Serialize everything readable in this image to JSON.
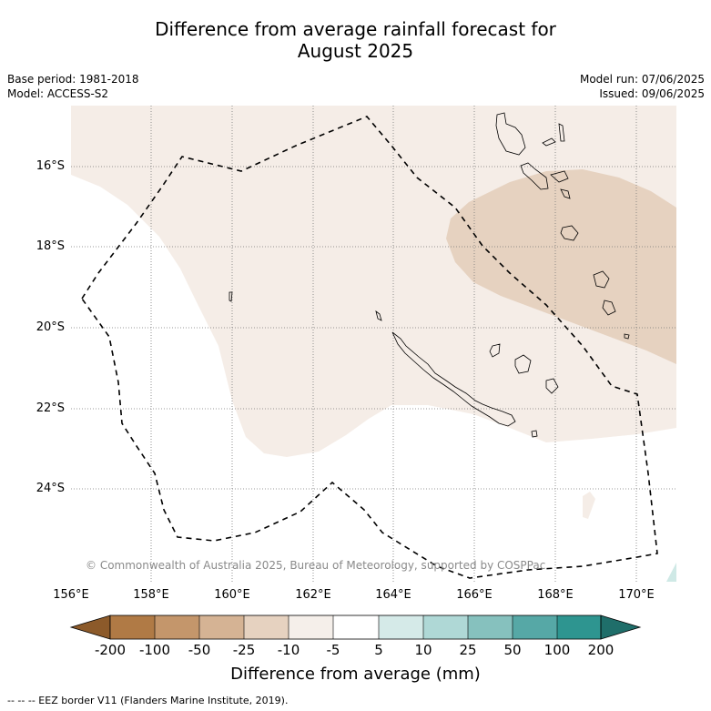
{
  "title_line1": "Difference from average rainfall forecast for",
  "title_line2": "August 2025",
  "meta_left": {
    "base_period": "Base period: 1981-2018",
    "model": "Model: ACCESS-S2"
  },
  "meta_right": {
    "model_run": "Model run: 07/06/2025",
    "issued": "Issued: 09/06/2025"
  },
  "lat_labels": [
    "16°S",
    "18°S",
    "20°S",
    "22°S",
    "24°S"
  ],
  "lon_labels": [
    "156°E",
    "158°E",
    "160°E",
    "162°E",
    "164°E",
    "166°E",
    "168°E",
    "170°E"
  ],
  "copyright": "© Commonwealth of Australia 2025, Bureau of Meteorology, supported by COSPPac",
  "colorbar": {
    "title": "Difference from average (mm)",
    "tick_labels": [
      "-200",
      "-100",
      "-50",
      "-25",
      "-10",
      "-5",
      "5",
      "10",
      "25",
      "50",
      "100",
      "200"
    ],
    "colors": [
      "#8c5a2a",
      "#b07a45",
      "#c4966b",
      "#d5b394",
      "#e6d2c0",
      "#f5efea",
      "#ffffff",
      "#d5eae8",
      "#afd8d6",
      "#86c1be",
      "#56a8a6",
      "#2e9590",
      "#1f6e6a"
    ]
  },
  "map_colors": {
    "light_dry": "#f5ede7",
    "moderate_dry": "#e6d2c0",
    "wet": "#cfe9e6"
  },
  "footnote": "--  --  -- EEZ border V11 (Flanders Marine Institute, 2019)."
}
